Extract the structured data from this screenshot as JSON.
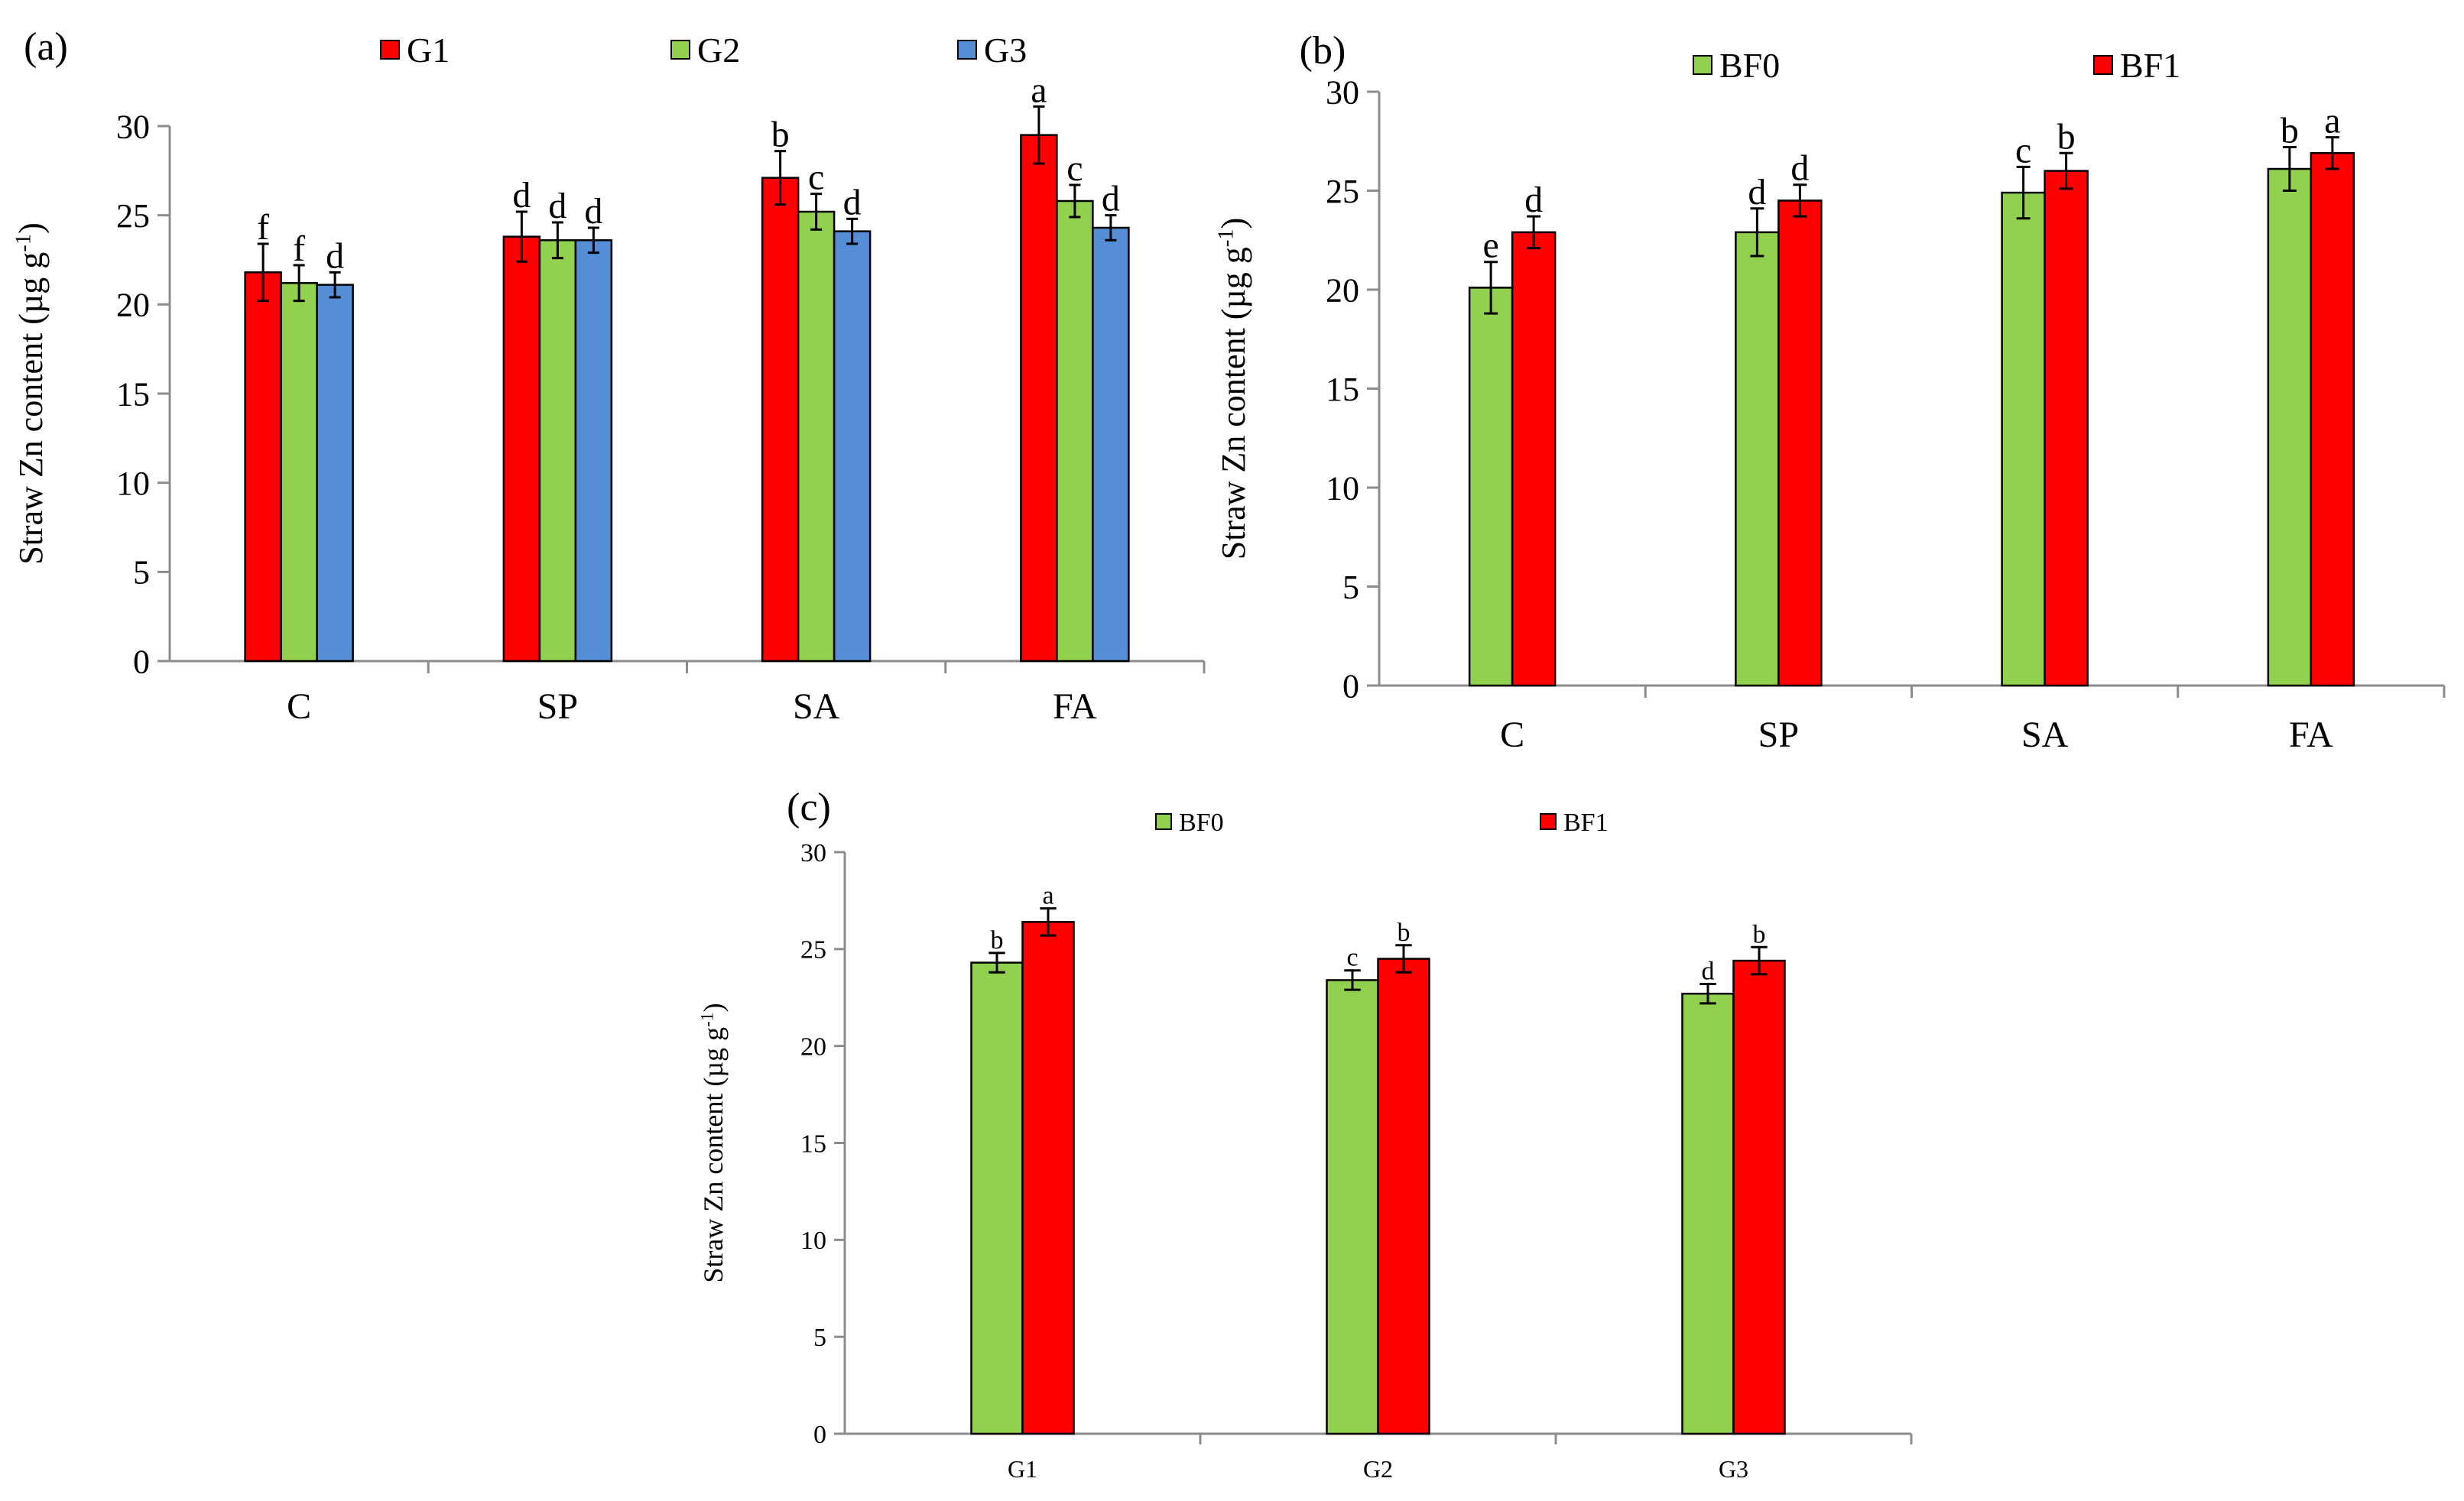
{
  "chart_data": [
    {
      "id": "a",
      "type": "bar",
      "panel_label": "(a)",
      "ylabel": "Straw Zn content (µg g",
      "ylabel_sup": "-1",
      "ylabel_close": ")",
      "ylim": [
        0,
        30
      ],
      "yticks": [
        "0",
        "5",
        "10",
        "15",
        "20",
        "25",
        "30"
      ],
      "categories": [
        "C",
        "SP",
        "SA",
        "FA"
      ],
      "legend_position": "top",
      "series": [
        {
          "name": "G1",
          "color": "#ff0000",
          "values": [
            21.8,
            23.8,
            27.1,
            29.5
          ],
          "errors": [
            1.6,
            1.4,
            1.5,
            1.6
          ],
          "letters": [
            "f",
            "d",
            "b",
            "a"
          ]
        },
        {
          "name": "G2",
          "color": "#92d050",
          "values": [
            21.2,
            23.6,
            25.2,
            25.8
          ],
          "errors": [
            1.0,
            1.0,
            1.0,
            0.9
          ],
          "letters": [
            "f",
            "d",
            "c",
            "c"
          ]
        },
        {
          "name": "G3",
          "color": "#558ed5",
          "values": [
            21.1,
            23.6,
            24.1,
            24.3
          ],
          "errors": [
            0.7,
            0.7,
            0.7,
            0.7
          ],
          "letters": [
            "d",
            "d",
            "d",
            "d"
          ]
        }
      ]
    },
    {
      "id": "b",
      "type": "bar",
      "panel_label": "(b)",
      "ylabel": "Straw Zn content (µg g",
      "ylabel_sup": "-1",
      "ylabel_close": ")",
      "ylim": [
        0,
        30
      ],
      "yticks": [
        "0",
        "5",
        "10",
        "15",
        "20",
        "25",
        "30"
      ],
      "categories": [
        "C",
        "SP",
        "SA",
        "FA"
      ],
      "legend_position": "top",
      "series": [
        {
          "name": "BF0",
          "color": "#92d050",
          "values": [
            20.1,
            22.9,
            24.9,
            26.1
          ],
          "errors": [
            1.3,
            1.2,
            1.3,
            1.1
          ],
          "letters": [
            "e",
            "d",
            "c",
            "b"
          ]
        },
        {
          "name": "BF1",
          "color": "#ff0000",
          "values": [
            22.9,
            24.5,
            26.0,
            26.9
          ],
          "errors": [
            0.8,
            0.8,
            0.9,
            0.8
          ],
          "letters": [
            "d",
            "d",
            "b",
            "a"
          ]
        }
      ]
    },
    {
      "id": "c",
      "type": "bar",
      "panel_label": "(c)",
      "ylabel": "Straw Zn content (µg g",
      "ylabel_sup": "-1",
      "ylabel_close": ")",
      "ylim": [
        0,
        30
      ],
      "yticks": [
        "0",
        "5",
        "10",
        "15",
        "20",
        "25",
        "30"
      ],
      "categories": [
        "G1",
        "G2",
        "G3"
      ],
      "legend_position": "top",
      "series": [
        {
          "name": "BF0",
          "color": "#92d050",
          "values": [
            24.3,
            23.4,
            22.7
          ],
          "errors": [
            0.5,
            0.5,
            0.5
          ],
          "letters": [
            "b",
            "c",
            "d"
          ]
        },
        {
          "name": "BF1",
          "color": "#ff0000",
          "values": [
            26.4,
            24.5,
            24.4
          ],
          "errors": [
            0.7,
            0.7,
            0.7
          ],
          "letters": [
            "a",
            "b",
            "b"
          ]
        }
      ]
    }
  ]
}
